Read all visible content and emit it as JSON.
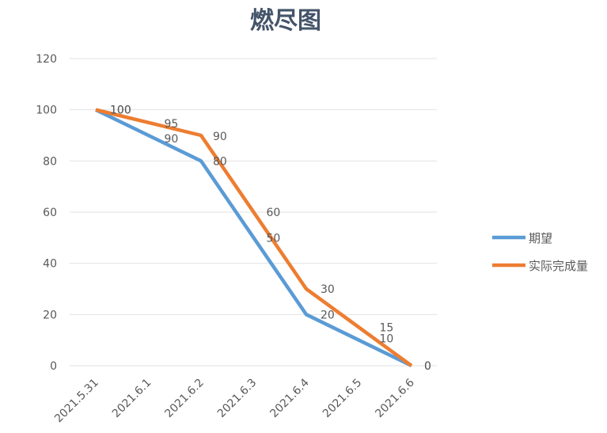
{
  "chart_data": {
    "type": "line",
    "title": "燃尽图",
    "xlabel": "",
    "ylabel": "",
    "categories": [
      "2021.5.31",
      "2021.6.1",
      "2021.6.2",
      "2021.6.3",
      "2021.6.4",
      "2021.6.5",
      "2021.6.6"
    ],
    "ylim": [
      0,
      120
    ],
    "yticks": [
      0,
      20,
      40,
      60,
      80,
      100,
      120
    ],
    "grid": true,
    "legend_position": "right",
    "series": [
      {
        "name": "期望",
        "color": "#5b9bd5",
        "values": [
          100,
          90,
          80,
          50,
          20,
          10,
          0
        ],
        "labels": [
          "100",
          "90",
          "80",
          "50",
          "20",
          "10",
          "0"
        ]
      },
      {
        "name": "实际完成量",
        "color": "#ed7d31",
        "values": [
          100,
          95,
          90,
          60,
          30,
          15,
          0
        ],
        "labels": [
          "100",
          "95",
          "90",
          "60",
          "30",
          "15",
          "0"
        ]
      }
    ]
  }
}
